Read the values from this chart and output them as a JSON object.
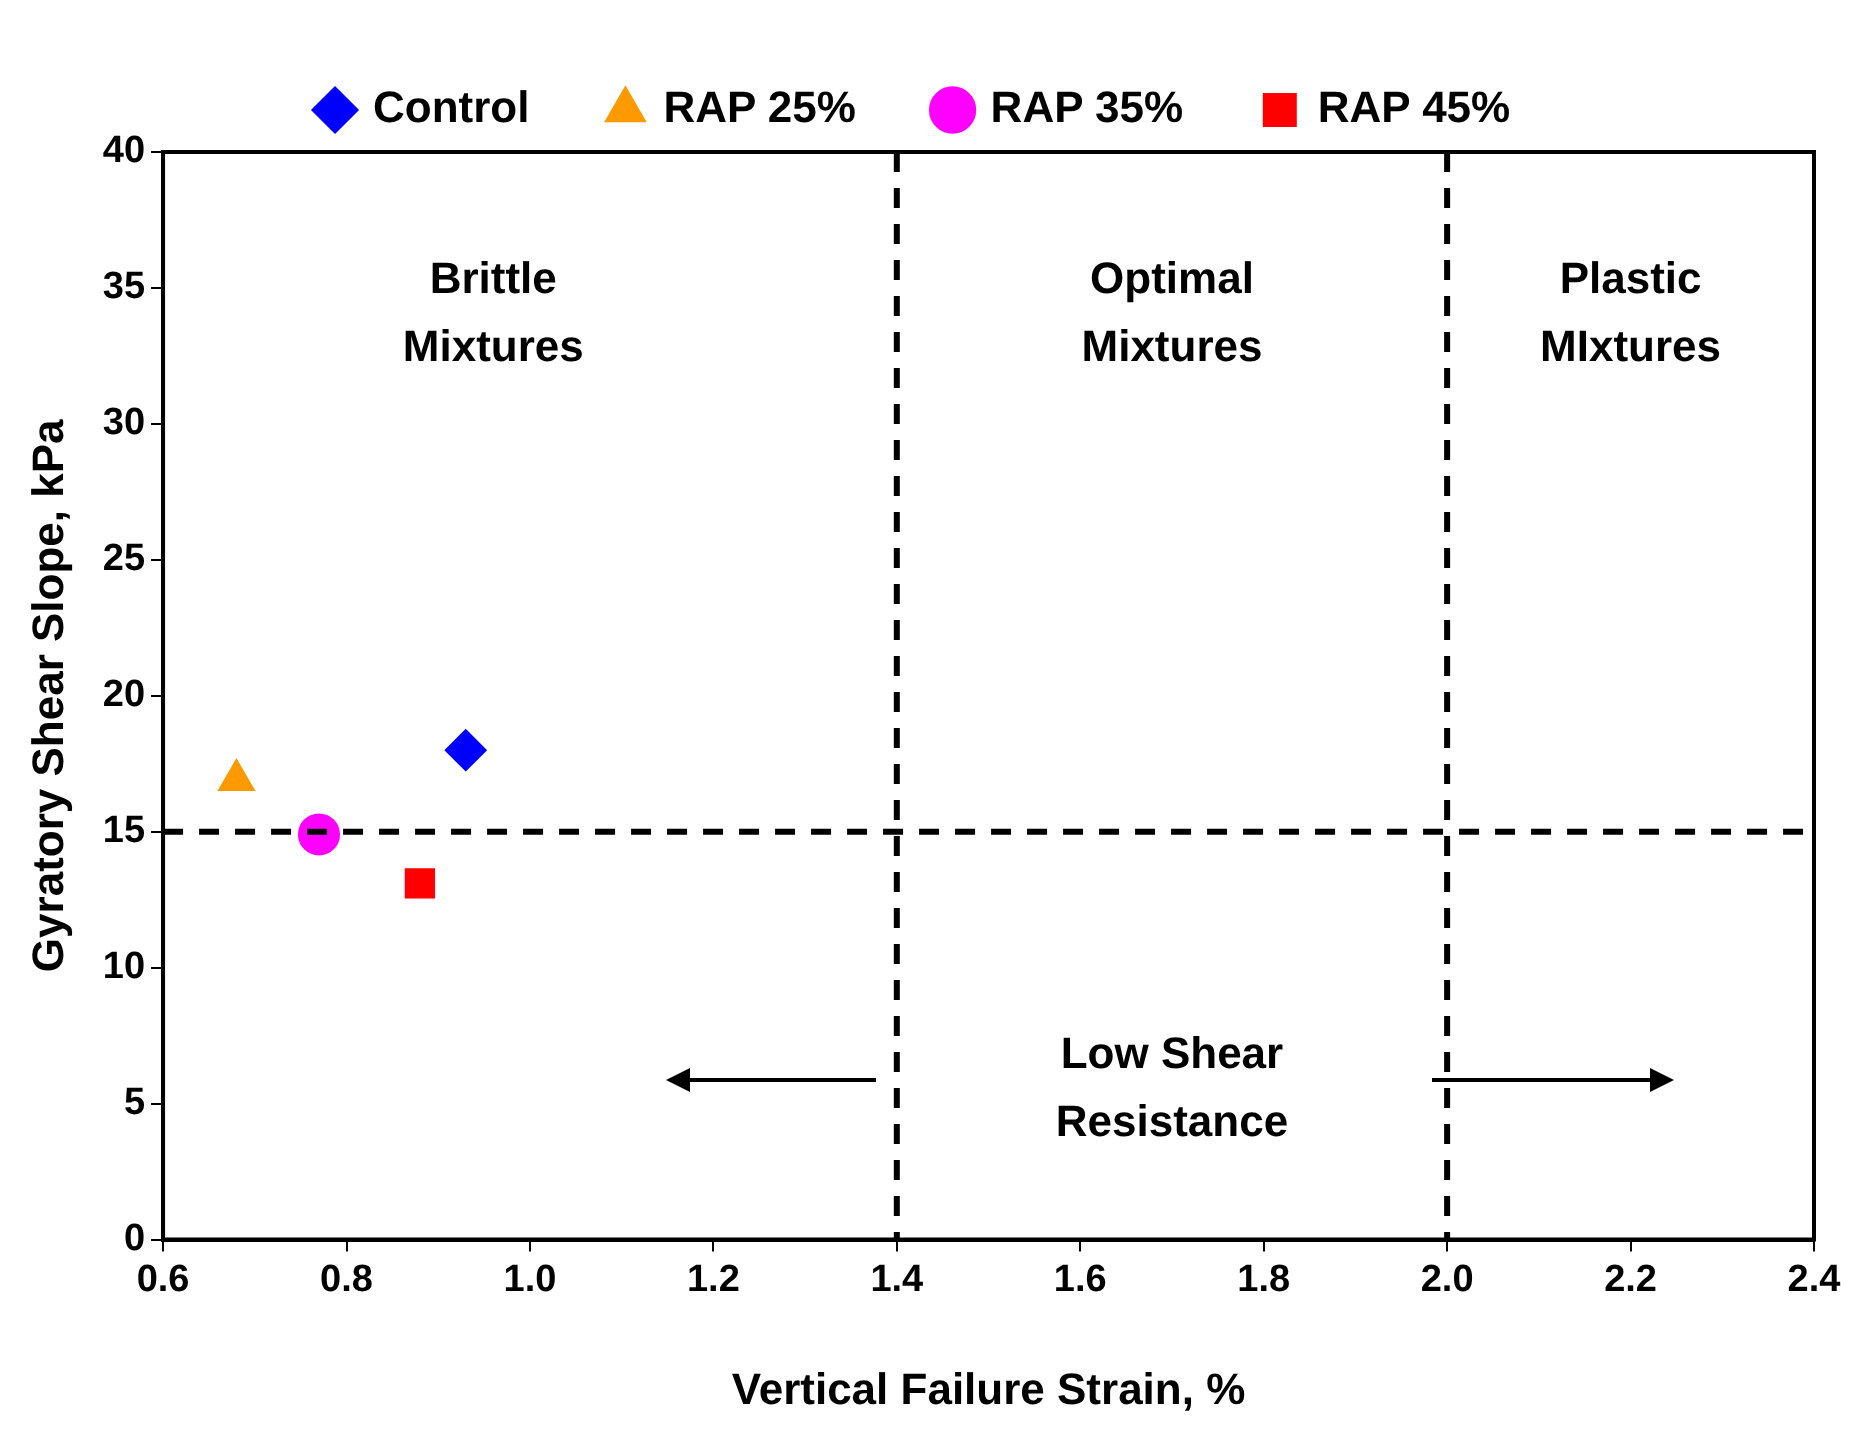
{
  "chart_data": {
    "type": "scatter",
    "xlabel": "Vertical Failure Strain, %",
    "ylabel": "Gyratory Shear Slope, kPa",
    "series": [
      {
        "name": "Control",
        "color": "#0000ff",
        "marker": "diamond",
        "x": [
          0.93
        ],
        "values": [
          18.0
        ]
      },
      {
        "name": "RAP 25%",
        "color": "#ff9900",
        "marker": "triangle",
        "x": [
          0.68
        ],
        "values": [
          16.9
        ]
      },
      {
        "name": "RAP 35%",
        "color": "#ff00ff",
        "marker": "circle",
        "x": [
          0.77
        ],
        "values": [
          14.9
        ]
      },
      {
        "name": "RAP 45%",
        "color": "#ff0000",
        "marker": "square",
        "x": [
          0.88
        ],
        "values": [
          13.1
        ]
      }
    ],
    "xlim": [
      0.6,
      2.4
    ],
    "xticks": [
      0.6,
      0.8,
      {
        "value": 1,
        "label": "1.0"
      },
      1.2,
      1.4,
      1.6,
      1.8,
      {
        "value": 2,
        "label": "2.0"
      },
      2.2,
      2.4
    ],
    "ylim": [
      0,
      40
    ],
    "yticks": [
      0,
      5,
      10,
      15,
      20,
      25,
      30,
      35,
      40
    ],
    "ref_lines": [
      {
        "axis": "y",
        "value": 15,
        "color": "#000000",
        "line_style": "dashed"
      },
      {
        "axis": "x",
        "value": 1.4,
        "color": "#000000",
        "line_style": "dashed"
      },
      {
        "axis": "x",
        "value": 2.0,
        "color": "#000000",
        "line_style": "dashed"
      }
    ],
    "annotations": [
      "Brittle Mixtures",
      "Optimal Mixtures",
      "Plastic MIxtures",
      "Low Shear Resistance"
    ],
    "grid": false,
    "legend": "top"
  }
}
